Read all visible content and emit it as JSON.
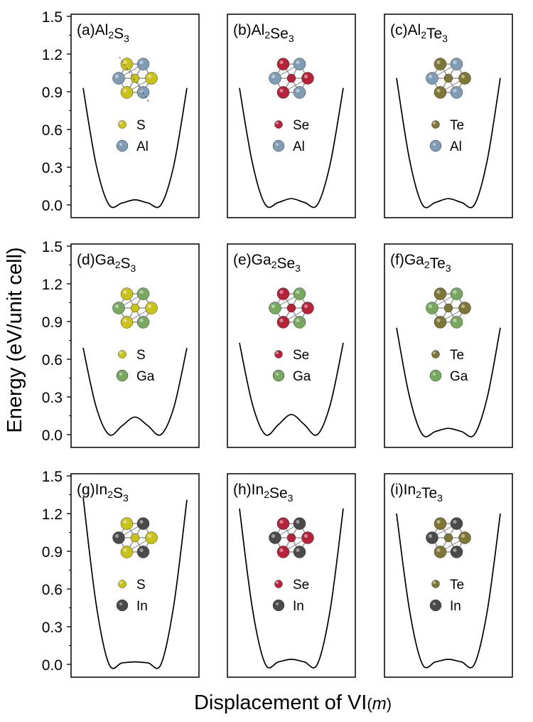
{
  "figure": {
    "ylabel": "Energy (eV/unit cell)",
    "xlabel_main": "Displacement of VI",
    "xlabel_paren_open": "(",
    "xlabel_var": "m",
    "xlabel_paren_close": ")"
  },
  "axis": {
    "ylim": [
      0,
      1.5
    ],
    "yticks": [
      "0.0",
      "0.3",
      "0.6",
      "0.9",
      "1.2",
      "1.5"
    ],
    "ytick_values": [
      0,
      0.3,
      0.6,
      0.9,
      1.2,
      1.5
    ]
  },
  "colors": {
    "S": "#c9c21a",
    "Se": "#b4233a",
    "Te": "#7d7636",
    "Al": "#7f9cb4",
    "Ga": "#78a85f",
    "In": "#4a4a4a",
    "bond": "#9a9a9a"
  },
  "chart_data": [
    {
      "type": "line",
      "panel": "(a)",
      "metal": "Al",
      "chalcogen": "S",
      "formula": [
        [
          "Al",
          "2"
        ],
        [
          "S",
          "3"
        ]
      ],
      "legend": [
        "S",
        "Al"
      ],
      "x": [
        -1,
        -0.75,
        -0.5,
        -0.25,
        0,
        0.25,
        0.5,
        0.75,
        1
      ],
      "y": [
        0.93,
        0.32,
        0.0,
        0.015,
        0.04,
        0.015,
        0.0,
        0.32,
        0.93
      ],
      "barrier": 0.04,
      "ylim": [
        0,
        1.5
      ]
    },
    {
      "type": "line",
      "panel": "(b)",
      "metal": "Al",
      "chalcogen": "Se",
      "formula": [
        [
          "Al",
          "2"
        ],
        [
          "Se",
          "3"
        ]
      ],
      "legend": [
        "Se",
        "Al"
      ],
      "x": [
        -1,
        -0.75,
        -0.5,
        -0.25,
        0,
        0.25,
        0.5,
        0.75,
        1
      ],
      "y": [
        0.93,
        0.33,
        0.0,
        0.02,
        0.05,
        0.02,
        0.0,
        0.33,
        0.93
      ],
      "barrier": 0.05,
      "ylim": [
        0,
        1.5
      ]
    },
    {
      "type": "line",
      "panel": "(c)",
      "metal": "Al",
      "chalcogen": "Te",
      "formula": [
        [
          "Al",
          "2"
        ],
        [
          "Te",
          "3"
        ]
      ],
      "legend": [
        "Te",
        "Al"
      ],
      "x": [
        -1,
        -0.75,
        -0.5,
        -0.25,
        0,
        0.25,
        0.5,
        0.75,
        1
      ],
      "y": [
        1.01,
        0.36,
        0.0,
        0.02,
        0.05,
        0.02,
        0.0,
        0.36,
        1.01
      ],
      "barrier": 0.05,
      "ylim": [
        0,
        1.5
      ]
    },
    {
      "type": "line",
      "panel": "(d)",
      "metal": "Ga",
      "chalcogen": "S",
      "formula": [
        [
          "Ga",
          "2"
        ],
        [
          "S",
          "3"
        ]
      ],
      "legend": [
        "S",
        "Ga"
      ],
      "x": [
        -1,
        -0.75,
        -0.5,
        -0.25,
        0,
        0.25,
        0.5,
        0.75,
        1
      ],
      "y": [
        0.69,
        0.22,
        0.0,
        0.07,
        0.14,
        0.07,
        0.0,
        0.22,
        0.69
      ],
      "barrier": 0.14,
      "ylim": [
        0,
        1.5
      ]
    },
    {
      "type": "line",
      "panel": "(e)",
      "metal": "Ga",
      "chalcogen": "Se",
      "formula": [
        [
          "Ga",
          "2"
        ],
        [
          "Se",
          "3"
        ]
      ],
      "legend": [
        "Se",
        "Ga"
      ],
      "x": [
        -1,
        -0.75,
        -0.5,
        -0.25,
        0,
        0.25,
        0.5,
        0.75,
        1
      ],
      "y": [
        0.73,
        0.24,
        0.0,
        0.08,
        0.16,
        0.08,
        0.0,
        0.24,
        0.73
      ],
      "barrier": 0.16,
      "ylim": [
        0,
        1.5
      ]
    },
    {
      "type": "line",
      "panel": "(f)",
      "metal": "Ga",
      "chalcogen": "Te",
      "formula": [
        [
          "Ga",
          "2"
        ],
        [
          "Te",
          "3"
        ]
      ],
      "legend": [
        "Te",
        "Ga"
      ],
      "x": [
        -1,
        -0.75,
        -0.5,
        -0.25,
        0,
        0.25,
        0.5,
        0.75,
        1
      ],
      "y": [
        0.85,
        0.3,
        0.0,
        0.025,
        0.05,
        0.025,
        0.0,
        0.3,
        0.85
      ],
      "barrier": 0.05,
      "ylim": [
        0,
        1.5
      ]
    },
    {
      "type": "line",
      "panel": "(g)",
      "metal": "In",
      "chalcogen": "S",
      "formula": [
        [
          "In",
          "2"
        ],
        [
          "S",
          "3"
        ]
      ],
      "legend": [
        "S",
        "In"
      ],
      "x": [
        -1,
        -0.75,
        -0.5,
        -0.25,
        0,
        0.25,
        0.5,
        0.75,
        1
      ],
      "y": [
        1.33,
        0.48,
        0.0,
        0.012,
        0.02,
        0.012,
        0.0,
        0.48,
        1.31
      ],
      "barrier": 0.02,
      "ylim": [
        0,
        1.5
      ]
    },
    {
      "type": "line",
      "panel": "(h)",
      "metal": "In",
      "chalcogen": "Se",
      "formula": [
        [
          "In",
          "2"
        ],
        [
          "Se",
          "3"
        ]
      ],
      "legend": [
        "Se",
        "In"
      ],
      "x": [
        -1,
        -0.75,
        -0.5,
        -0.25,
        0,
        0.25,
        0.5,
        0.75,
        1
      ],
      "y": [
        1.24,
        0.44,
        0.0,
        0.02,
        0.04,
        0.02,
        0.0,
        0.44,
        1.24
      ],
      "barrier": 0.04,
      "ylim": [
        0,
        1.5
      ]
    },
    {
      "type": "line",
      "panel": "(i)",
      "metal": "In",
      "chalcogen": "Te",
      "formula": [
        [
          "In",
          "2"
        ],
        [
          "Te",
          "3"
        ]
      ],
      "legend": [
        "Te",
        "In"
      ],
      "x": [
        -1,
        -0.75,
        -0.5,
        -0.25,
        0,
        0.25,
        0.5,
        0.75,
        1
      ],
      "y": [
        1.2,
        0.43,
        0.0,
        0.02,
        0.04,
        0.02,
        0.0,
        0.43,
        1.2
      ],
      "barrier": 0.04,
      "ylim": [
        0,
        1.5
      ]
    }
  ]
}
